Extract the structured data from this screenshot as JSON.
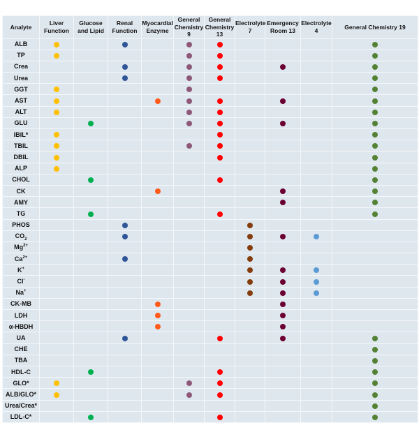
{
  "columns": [
    {
      "key": "analyte",
      "label": "Analyte"
    },
    {
      "key": "liver",
      "label": "Liver Function",
      "color": "#ffc000"
    },
    {
      "key": "glucose",
      "label": "Glucose and Lipid",
      "color": "#00b050"
    },
    {
      "key": "renal",
      "label": "Renal Function",
      "color": "#2f5597"
    },
    {
      "key": "myo",
      "label": "Myocardial Enzyme",
      "color": "#ff5a1a"
    },
    {
      "key": "gc9",
      "label": "General Chemistry 9",
      "color": "#8e5878"
    },
    {
      "key": "gc13",
      "label": "General Chemistry 13",
      "color": "#ff0000"
    },
    {
      "key": "e7",
      "label": "Electrolyte 7",
      "color": "#843c0c"
    },
    {
      "key": "er13",
      "label": "Emergency Room 13",
      "color": "#6b0033"
    },
    {
      "key": "e4",
      "label": "Electrolyte 4",
      "color": "#5b9bd5"
    },
    {
      "key": "gc19",
      "label": "General Chemistry 19",
      "color": "#548235"
    }
  ],
  "rows": [
    {
      "name": "ALB",
      "marks": [
        1,
        3,
        5,
        6,
        10
      ]
    },
    {
      "name": "TP",
      "marks": [
        1,
        5,
        6,
        10
      ]
    },
    {
      "name": "Crea",
      "marks": [
        3,
        5,
        6,
        8,
        10
      ]
    },
    {
      "name": "Urea",
      "marks": [
        3,
        5,
        6,
        10
      ]
    },
    {
      "name": "GGT",
      "marks": [
        1,
        5,
        10
      ]
    },
    {
      "name": "AST",
      "marks": [
        1,
        4,
        5,
        6,
        8,
        10
      ]
    },
    {
      "name": "ALT",
      "marks": [
        1,
        5,
        6,
        10
      ]
    },
    {
      "name": "GLU",
      "marks": [
        2,
        5,
        6,
        8,
        10
      ]
    },
    {
      "name": "IBIL*",
      "marks": [
        1,
        6,
        10
      ]
    },
    {
      "name": "TBIL",
      "marks": [
        1,
        5,
        6,
        10
      ]
    },
    {
      "name": "DBIL",
      "marks": [
        1,
        6,
        10
      ]
    },
    {
      "name": "ALP",
      "marks": [
        1,
        10
      ]
    },
    {
      "name": "CHOL",
      "marks": [
        2,
        6,
        10
      ]
    },
    {
      "name": "CK",
      "marks": [
        4,
        8,
        10
      ]
    },
    {
      "name": "AMY",
      "marks": [
        8,
        10
      ]
    },
    {
      "name": "TG",
      "marks": [
        2,
        6,
        10
      ]
    },
    {
      "name": "PHOS",
      "marks": [
        3,
        7
      ]
    },
    {
      "name": "CO",
      "sub": "2",
      "marks": [
        3,
        7,
        8,
        9
      ]
    },
    {
      "name": "Mg",
      "sup": "2+",
      "marks": [
        7
      ]
    },
    {
      "name": "Ca",
      "sup": "2+",
      "marks": [
        3,
        7
      ]
    },
    {
      "name": "K",
      "sup": "+",
      "marks": [
        7,
        8,
        9
      ]
    },
    {
      "name": "Cl",
      "sup": "-",
      "marks": [
        7,
        8,
        9
      ]
    },
    {
      "name": "Na",
      "sup": "+",
      "marks": [
        7,
        8,
        9
      ]
    },
    {
      "name": "CK-MB",
      "marks": [
        4,
        8
      ]
    },
    {
      "name": "LDH",
      "marks": [
        4,
        8
      ]
    },
    {
      "name": "α-HBDH",
      "marks": [
        4,
        8
      ]
    },
    {
      "name": "UA",
      "marks": [
        3,
        6,
        8,
        10
      ]
    },
    {
      "name": "CHE",
      "marks": [
        10
      ]
    },
    {
      "name": "TBA",
      "marks": [
        10
      ]
    },
    {
      "name": "HDL-C",
      "marks": [
        2,
        6,
        10
      ]
    },
    {
      "name": "GLO*",
      "marks": [
        1,
        5,
        6,
        10
      ]
    },
    {
      "name": "ALB/GLO*",
      "marks": [
        1,
        5,
        6,
        10
      ]
    },
    {
      "name": "Urea/Crea*",
      "marks": [
        10
      ]
    },
    {
      "name": "LDL-C*",
      "marks": [
        2,
        6,
        10
      ]
    }
  ]
}
